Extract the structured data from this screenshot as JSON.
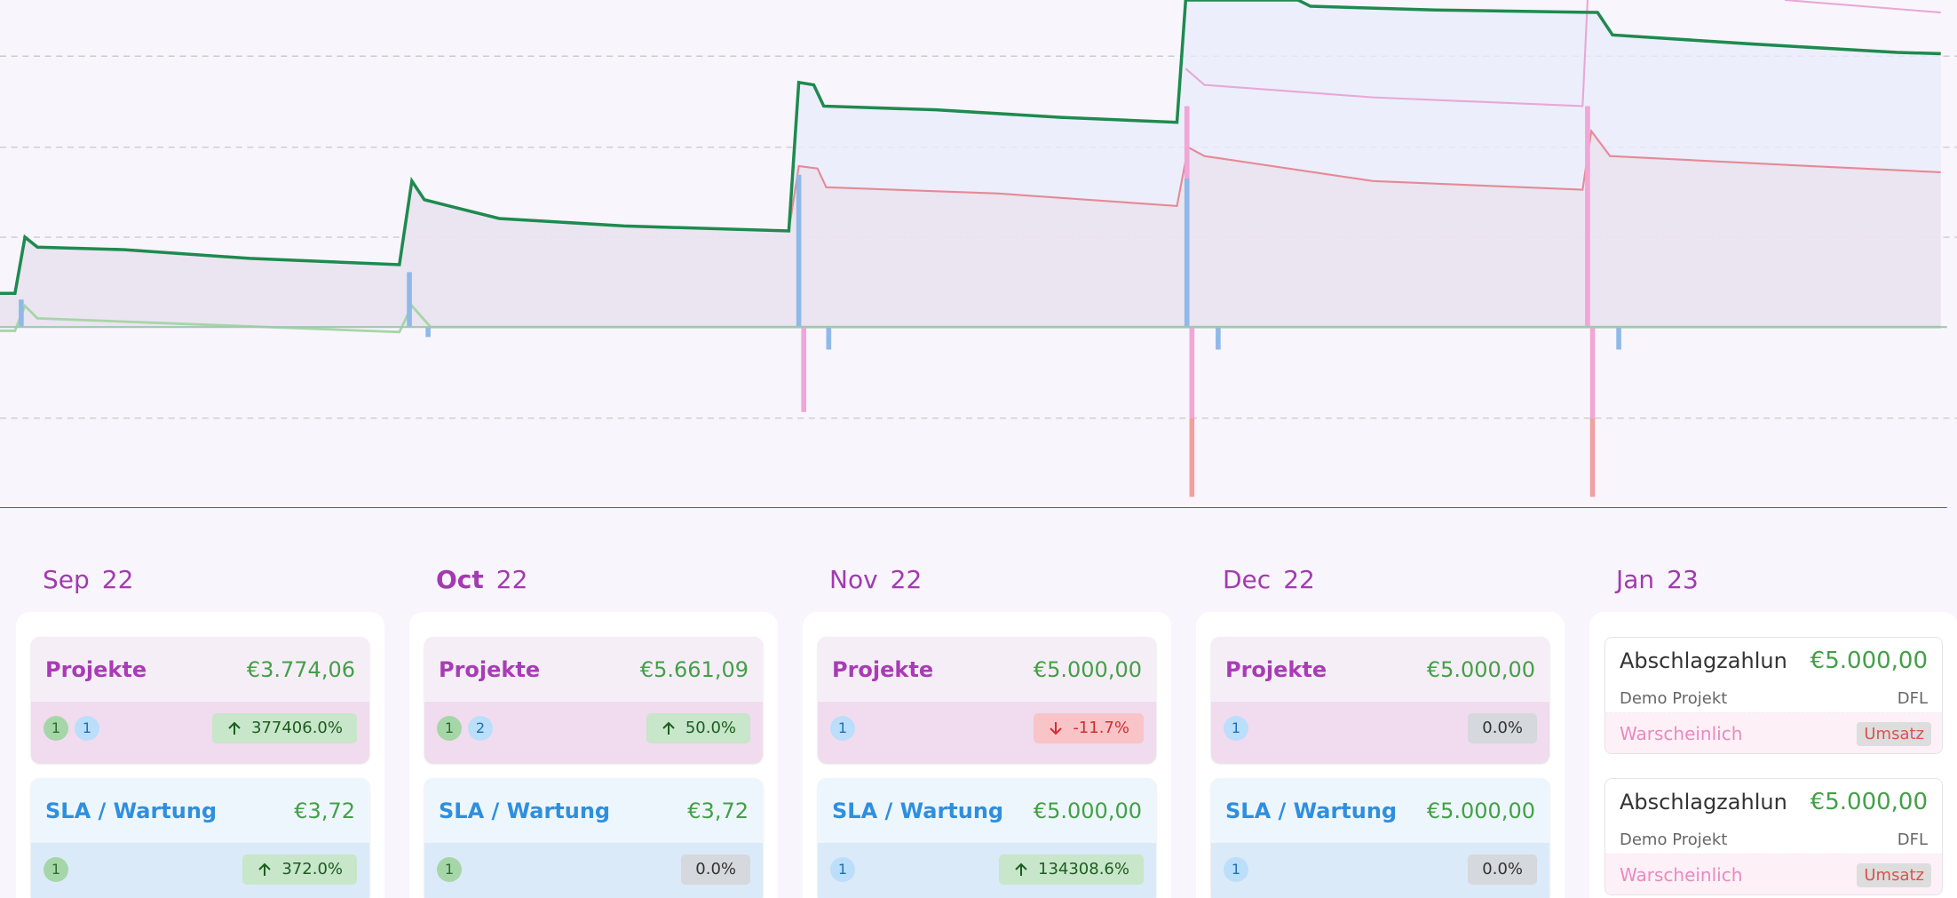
{
  "months": [
    {
      "month": "Sep",
      "year": "22",
      "current": false,
      "groups": [
        {
          "title": "Projekte",
          "amount": "€3.774,06",
          "badges": [
            "1",
            "1"
          ],
          "change": "377406.0%",
          "trend": "up"
        },
        {
          "title": "SLA / Wartung",
          "amount": "€3,72",
          "badges": [
            "1"
          ],
          "change": "372.0%",
          "trend": "up"
        }
      ]
    },
    {
      "month": "Oct",
      "year": "22",
      "current": true,
      "groups": [
        {
          "title": "Projekte",
          "amount": "€5.661,09",
          "badges": [
            "1",
            "2"
          ],
          "change": "50.0%",
          "trend": "up"
        },
        {
          "title": "SLA / Wartung",
          "amount": "€3,72",
          "badges": [
            "1"
          ],
          "change": "0.0%",
          "trend": "none"
        }
      ]
    },
    {
      "month": "Nov",
      "year": "22",
      "current": false,
      "groups": [
        {
          "title": "Projekte",
          "amount": "€5.000,00",
          "badges": [
            "1"
          ],
          "change": "-11.7%",
          "trend": "down"
        },
        {
          "title": "SLA / Wartung",
          "amount": "€5.000,00",
          "badges": [
            "1"
          ],
          "change": "134308.6%",
          "trend": "up"
        }
      ]
    },
    {
      "month": "Dec",
      "year": "22",
      "current": false,
      "groups": [
        {
          "title": "Projekte",
          "amount": "€5.000,00",
          "badges": [
            "1"
          ],
          "change": "0.0%",
          "trend": "none"
        },
        {
          "title": "SLA / Wartung",
          "amount": "€5.000,00",
          "badges": [
            "1"
          ],
          "change": "0.0%",
          "trend": "none"
        }
      ]
    },
    {
      "month": "Jan",
      "year": "23",
      "current": false,
      "items": [
        {
          "title": "Abschlagzahlun",
          "amount": "€5.000,00",
          "project": "Demo Projekt",
          "code": "DFL",
          "status": "Warscheinlich",
          "tag": "Umsatz"
        },
        {
          "title": "Abschlagzahlun",
          "amount": "€5.000,00",
          "project": "Demo Projekt",
          "code": "DFL",
          "status": "Warscheinlich",
          "tag": "Umsatz"
        }
      ]
    }
  ]
}
